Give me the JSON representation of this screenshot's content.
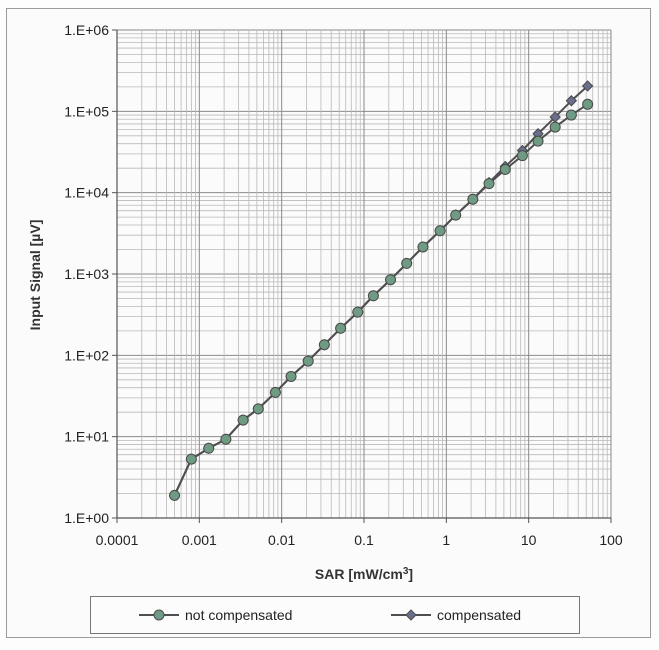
{
  "chart_data": {
    "type": "line",
    "title": "",
    "xlabel": "SAR [mW/cm3]",
    "xlabel_parts": {
      "base": "SAR [mW/cm",
      "sup": "3",
      "tail": "]"
    },
    "ylabel": "Input Signal [µV]",
    "x_scale": "log",
    "y_scale": "log",
    "xlim": [
      0.0001,
      100
    ],
    "ylim": [
      1,
      1000000
    ],
    "x_tick_labels": [
      "0.0001",
      "0.001",
      "0.01",
      "0.1",
      "1",
      "10",
      "100"
    ],
    "x_tick_values": [
      0.0001,
      0.001,
      0.01,
      0.1,
      1,
      10,
      100
    ],
    "y_tick_labels": [
      "1.E+00",
      "1.E+01",
      "1.E+02",
      "1.E+03",
      "1.E+04",
      "1.E+05",
      "1.E+06"
    ],
    "y_tick_values": [
      1,
      10,
      100,
      1000,
      10000,
      100000,
      1000000
    ],
    "grid": true,
    "legend_position": "bottom",
    "series": [
      {
        "name": "not compensated",
        "marker": "circle",
        "color": "#4f4f4f",
        "marker_color": "#6f9a84",
        "x": [
          0.0005,
          0.0008,
          0.0013,
          0.0021,
          0.0034,
          0.0052,
          0.0084,
          0.013,
          0.021,
          0.033,
          0.052,
          0.084,
          0.13,
          0.21,
          0.33,
          0.52,
          0.84,
          1.3,
          2.1,
          3.3,
          5.2,
          8.4,
          13,
          21,
          33,
          52
        ],
        "values": [
          1.9,
          5.3,
          7.2,
          9.3,
          16,
          22,
          35,
          55,
          85,
          135,
          215,
          340,
          540,
          850,
          1350,
          2150,
          3400,
          5300,
          8300,
          12900,
          19300,
          28500,
          43000,
          64000,
          90000,
          122000
        ]
      },
      {
        "name": "compensated",
        "marker": "diamond",
        "color": "#4f4f4f",
        "marker_color": "#6a6f8e",
        "x": [
          0.0005,
          0.0008,
          0.0013,
          0.0021,
          0.0034,
          0.0052,
          0.0084,
          0.013,
          0.021,
          0.033,
          0.052,
          0.084,
          0.13,
          0.21,
          0.33,
          0.52,
          0.84,
          1.3,
          2.1,
          3.3,
          5.2,
          8.4,
          13,
          21,
          33,
          52
        ],
        "values": [
          1.9,
          5.3,
          7.2,
          9.3,
          16,
          22,
          35,
          55,
          85,
          135,
          215,
          340,
          540,
          850,
          1350,
          2150,
          3400,
          5300,
          8300,
          13300,
          21000,
          33000,
          53000,
          85000,
          135000,
          205000
        ]
      }
    ]
  }
}
